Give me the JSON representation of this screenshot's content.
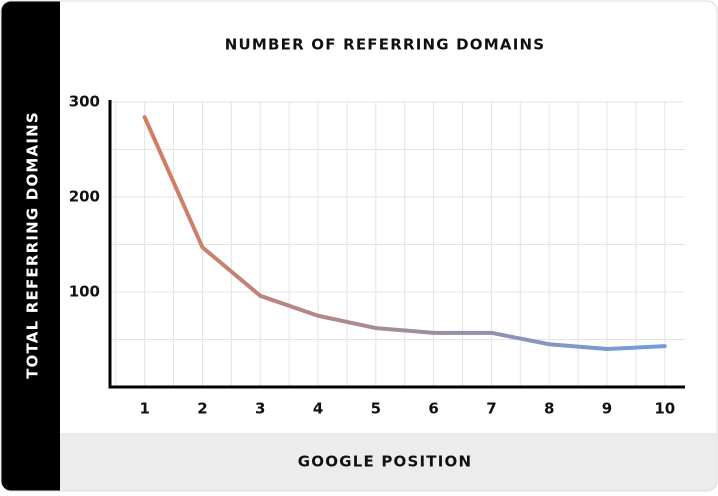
{
  "chart_data": {
    "type": "line",
    "title": "NUMBER OF REFERRING DOMAINS",
    "x_label": "GOOGLE POSITION",
    "y_label": "TOTAL REFERRING DOMAINS",
    "x": [
      1,
      2,
      3,
      4,
      5,
      6,
      7,
      8,
      9,
      10
    ],
    "series": [
      {
        "values": [
          284,
          147,
          96,
          75,
          62,
          57,
          57,
          45,
          40,
          43
        ],
        "colors": [
          "#dc7a55",
          "#6a9fe0"
        ]
      }
    ],
    "xlim": [
      0.4,
      10.35
    ],
    "xticks": [
      1,
      2,
      3,
      4,
      5,
      6,
      7,
      8,
      9,
      10
    ],
    "ylim": [
      0,
      300
    ],
    "yticks": [
      100,
      200,
      300
    ],
    "grid": true
  }
}
